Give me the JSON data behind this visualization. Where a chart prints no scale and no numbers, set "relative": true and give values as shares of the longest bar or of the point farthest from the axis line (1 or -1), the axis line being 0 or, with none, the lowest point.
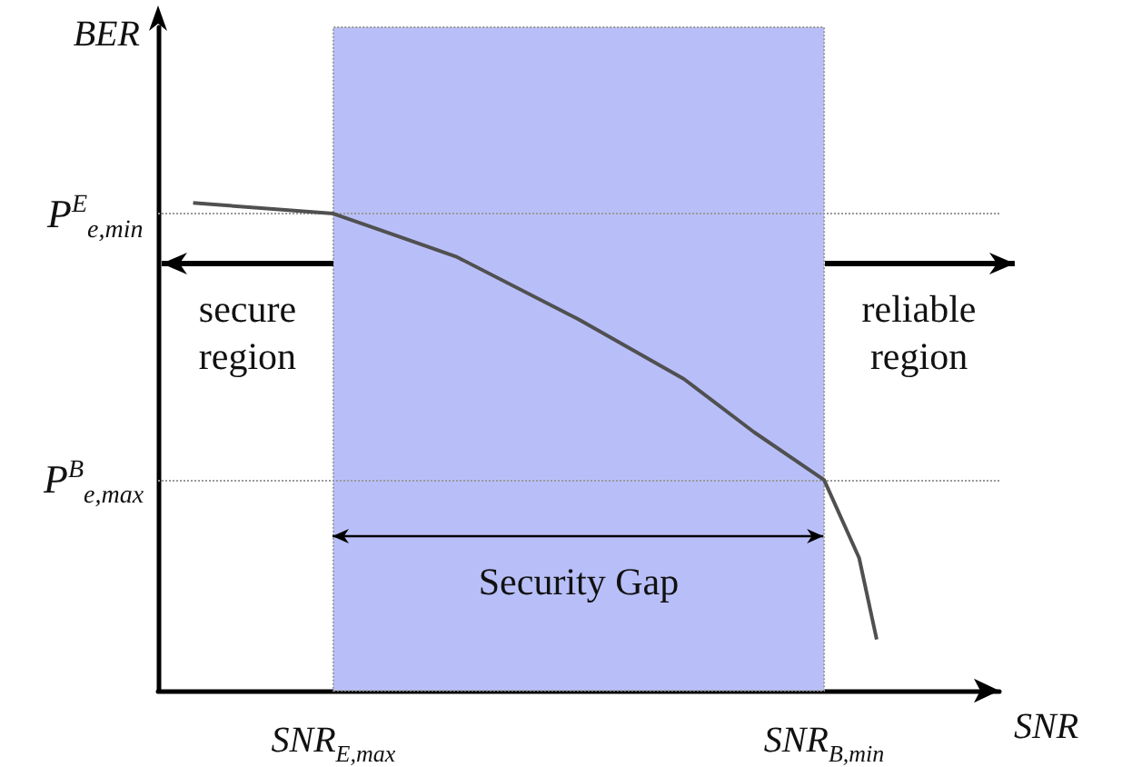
{
  "chart_data": {
    "type": "line",
    "xlabel": "SNR",
    "ylabel": "BER",
    "relative": true,
    "categories": [
      null,
      null,
      null,
      null,
      null,
      null,
      null,
      null,
      null,
      null,
      "SNR$_{E,max}$",
      null,
      null,
      null,
      null,
      null,
      null,
      null,
      null,
      null,
      null,
      null,
      null,
      null,
      null,
      null,
      null,
      null,
      null,
      null,
      null,
      null,
      null,
      null,
      null,
      null,
      null,
      null,
      "SNR$_{B,min}$",
      null,
      null,
      null,
      null,
      null,
      null,
      null,
      null,
      null,
      null
    ],
    "series": [
      {
        "color": "#505050",
        "values": [
          null,
          null,
          1,
          null,
          null,
          null,
          null,
          null,
          null,
          null,
          0.978,
          null,
          null,
          null,
          null,
          null,
          null,
          0.89,
          null,
          null,
          null,
          null,
          null,
          null,
          0.761,
          null,
          null,
          null,
          null,
          null,
          0.639,
          null,
          null,
          null,
          0.53,
          null,
          null,
          null,
          0.432,
          null,
          0.272,
          0.105,
          null,
          null,
          null,
          null,
          null,
          null,
          null
        ]
      }
    ],
    "ref_lines": [
      {
        "axis": "y",
        "value": 0.976,
        "label": "P$^{E}$$_{e,min}$",
        "color": "#999999",
        "line_style": "dotted"
      },
      {
        "axis": "y",
        "value": 0.432,
        "label": "P$^{B}$$_{e,max}$",
        "color": "#999999",
        "line_style": "dotted"
      }
    ],
    "bands": [
      {
        "axis": "x",
        "from": "SNR$_{E,max}$",
        "to": "SNR$_{B,min}$",
        "color": "#b8bff8"
      }
    ],
    "annotations": [
      "secure region",
      "Security Gap",
      "reliable region"
    ],
    "marker": "none",
    "line_style": "solid"
  }
}
